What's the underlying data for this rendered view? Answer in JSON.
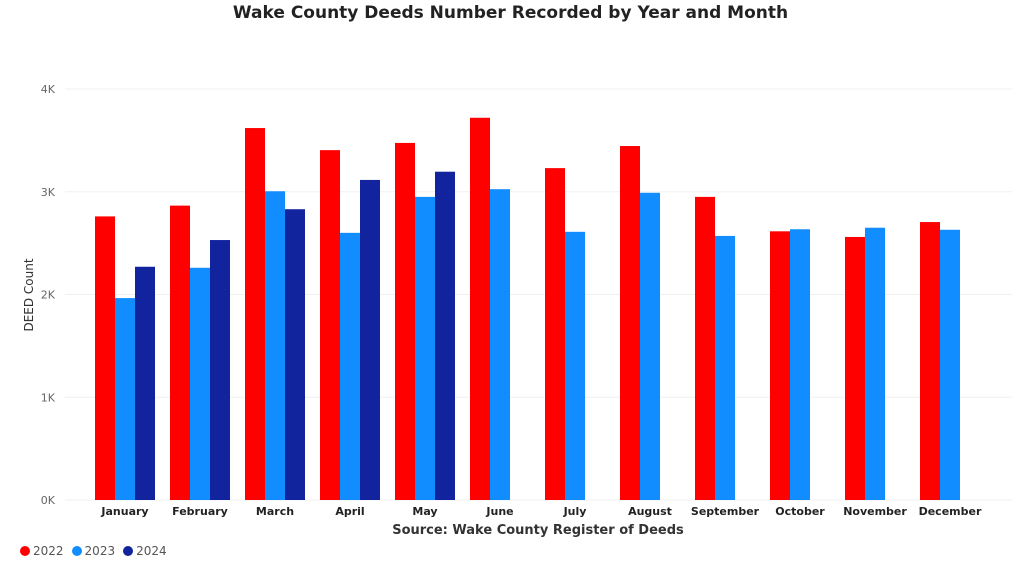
{
  "chart_data": {
    "type": "bar",
    "title": "Wake County Deeds Number Recorded by Year and Month",
    "xlabel": "Source: Wake County Register of Deeds",
    "ylabel": "DEED Count",
    "ylim": [
      0,
      4000
    ],
    "yticks": [
      0,
      1000,
      2000,
      3000,
      4000
    ],
    "ytick_labels": [
      "0K",
      "1K",
      "2K",
      "3K",
      "4K"
    ],
    "grid": true,
    "legend_position": "bottom-left",
    "categories": [
      "January",
      "February",
      "March",
      "April",
      "May",
      "June",
      "July",
      "August",
      "September",
      "October",
      "November",
      "December"
    ],
    "series": [
      {
        "name": "2022",
        "color": "#ff0000",
        "values": [
          2760,
          2865,
          3620,
          3405,
          3475,
          3720,
          3230,
          3445,
          2950,
          2615,
          2560,
          2705
        ]
      },
      {
        "name": "2023",
        "color": "#118dff",
        "values": [
          1965,
          2260,
          3005,
          2600,
          2950,
          3025,
          2610,
          2990,
          2570,
          2635,
          2650,
          2630
        ]
      },
      {
        "name": "2024",
        "color": "#12239e",
        "values": [
          2270,
          2530,
          2830,
          3115,
          3195,
          null,
          null,
          null,
          null,
          null,
          null,
          null
        ]
      }
    ]
  }
}
